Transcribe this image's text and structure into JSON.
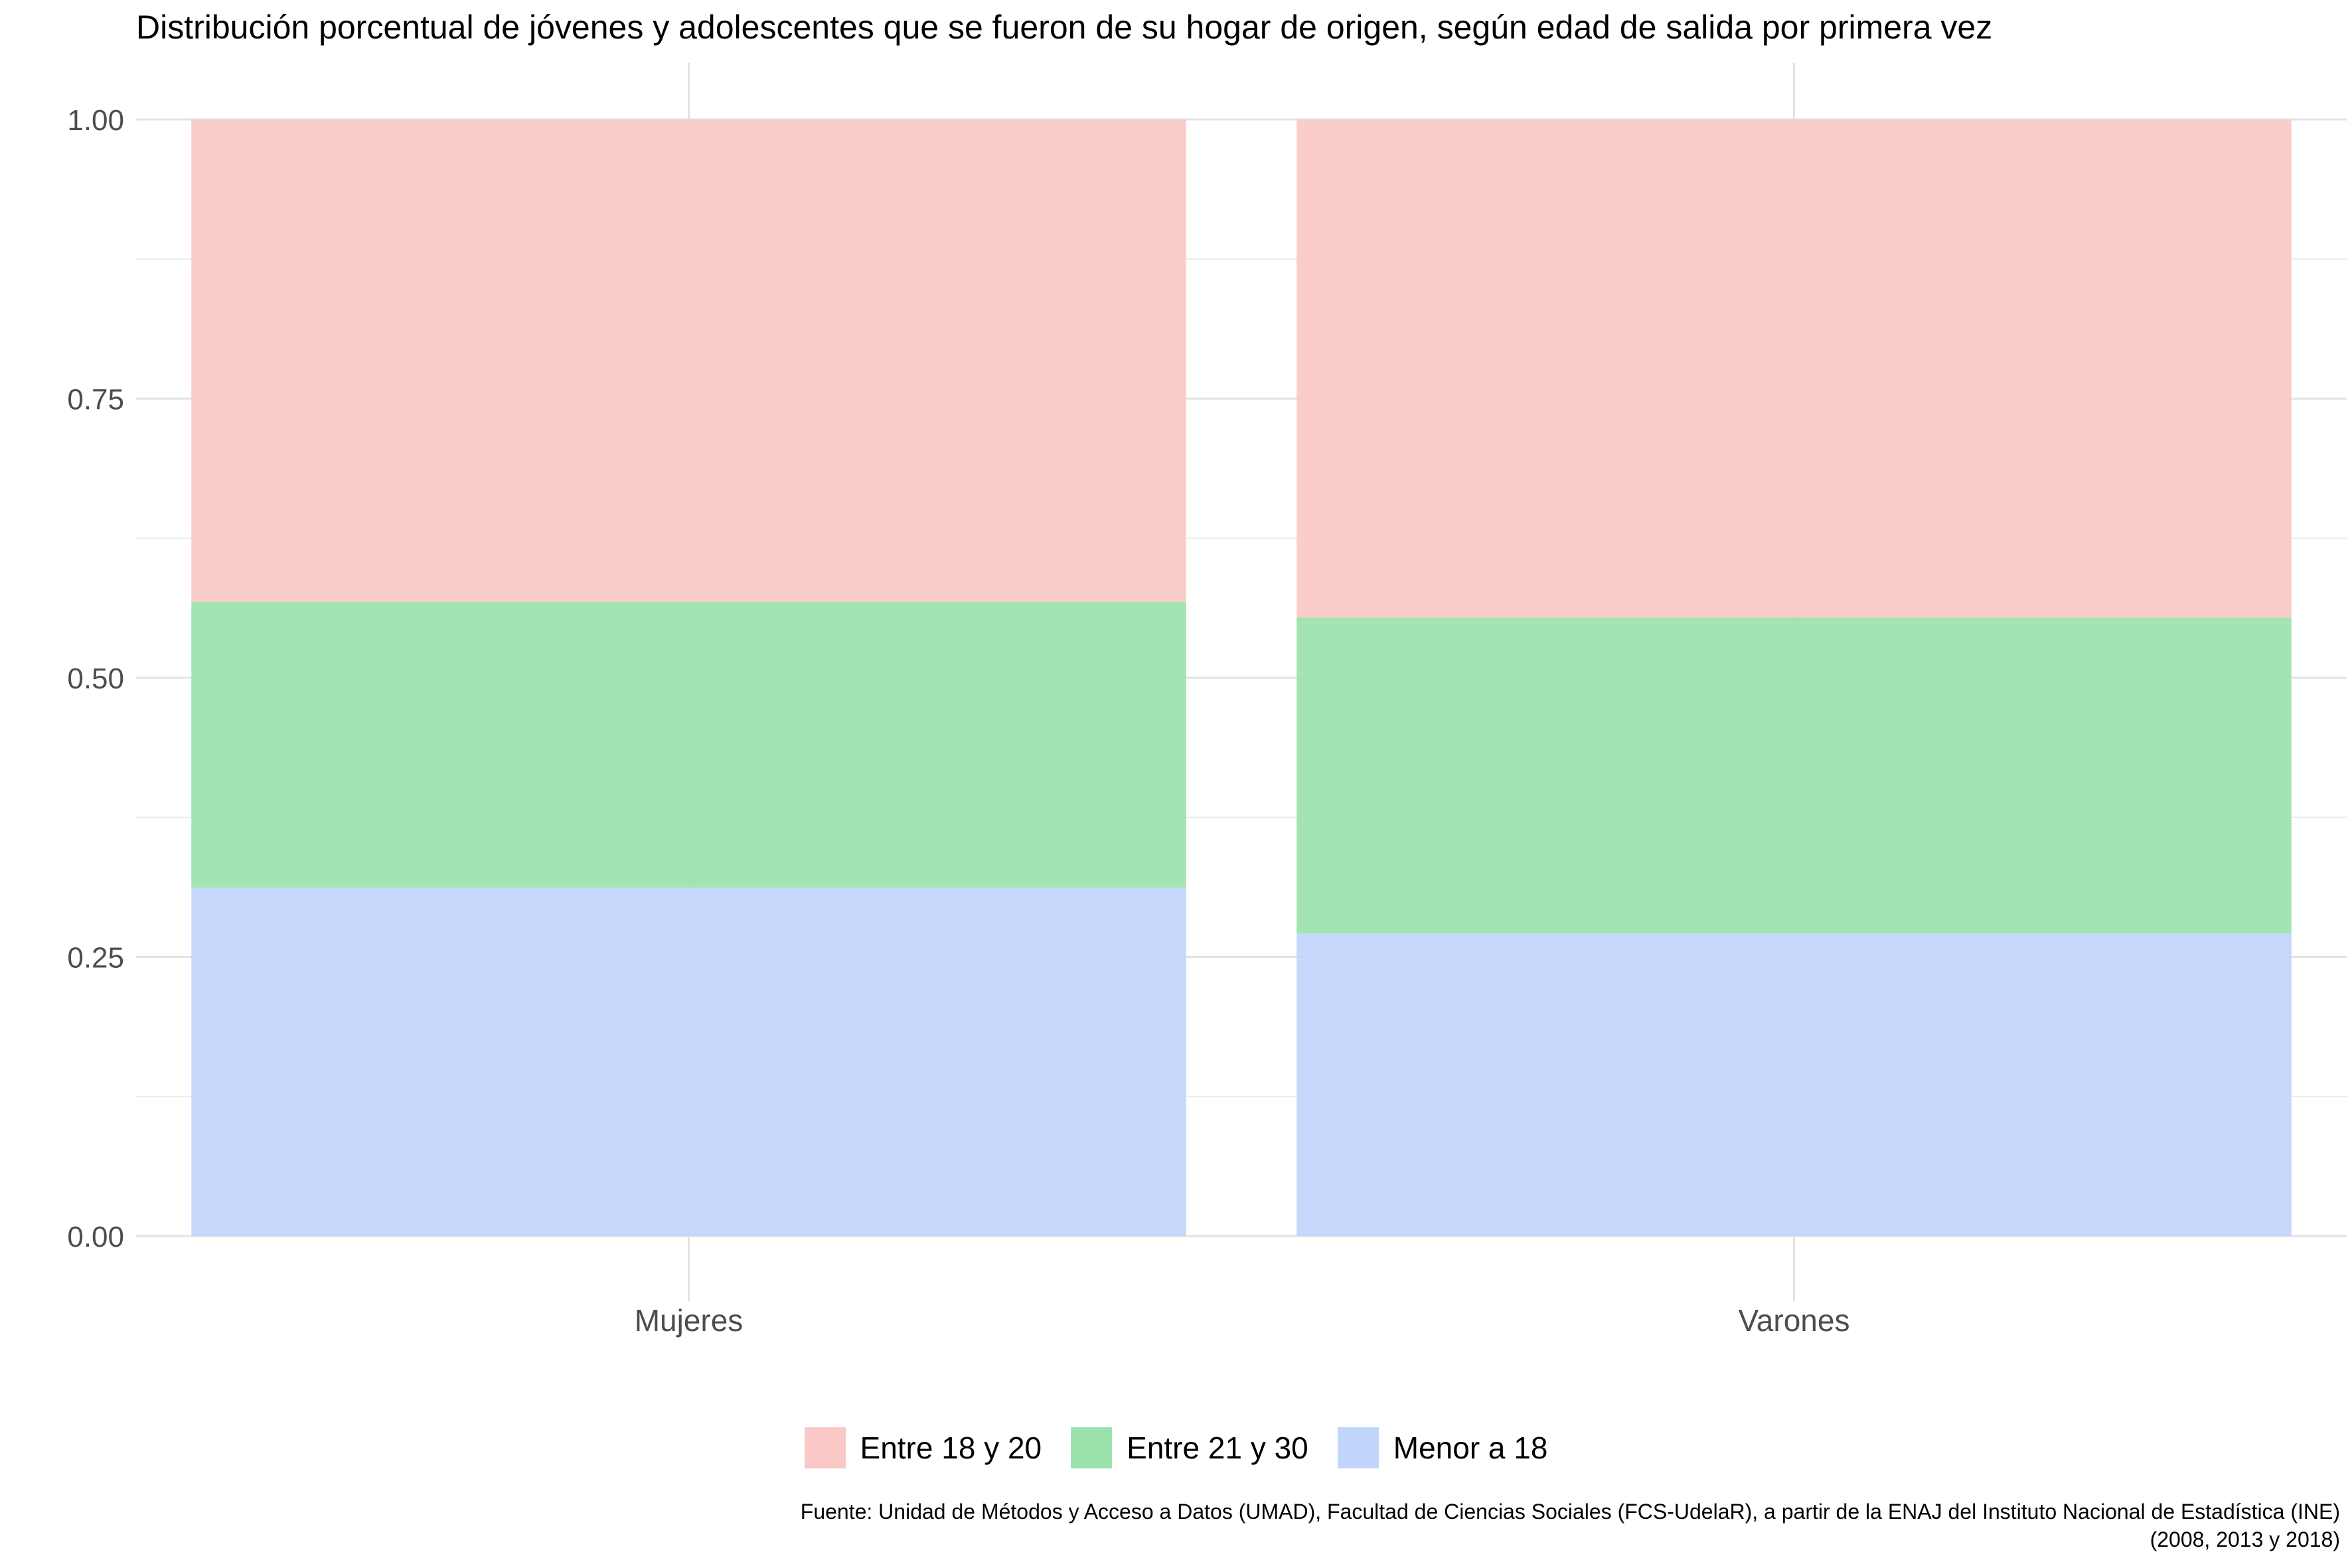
{
  "chart_data": {
    "type": "bar",
    "stacked": true,
    "title": "Distribución porcentual de jóvenes y adolescentes que se fueron de su hogar de origen, según edad de salida por primera vez",
    "xlabel": "",
    "ylabel": "",
    "categories": [
      "Mujeres",
      "Varones"
    ],
    "ylim": [
      0,
      1
    ],
    "y_ticks": [
      "0.00",
      "0.25",
      "0.50",
      "0.75",
      "1.00"
    ],
    "grid": true,
    "legend_position": "bottom",
    "series": [
      {
        "name": "Menor a 18",
        "color": "#c1d5fc",
        "values": [
          0.312,
          0.271
        ]
      },
      {
        "name": "Entre 21 y 30",
        "color": "#9be2ad",
        "values": [
          0.256,
          0.283
        ]
      },
      {
        "name": "Entre 18 y 20",
        "color": "#fac8c6",
        "values": [
          0.432,
          0.446
        ]
      }
    ],
    "legend_order": [
      "Entre 18 y 20",
      "Entre 21 y 30",
      "Menor a 18"
    ],
    "caption": [
      "Fuente: Unidad de Métodos y Acceso a Datos (UMAD), Facultad de Ciencias Sociales (FCS-UdelaR), a partir de la ENAJ del Instituto Nacional de Estadística (INE)",
      "(2008, 2013 y 2018)"
    ]
  }
}
